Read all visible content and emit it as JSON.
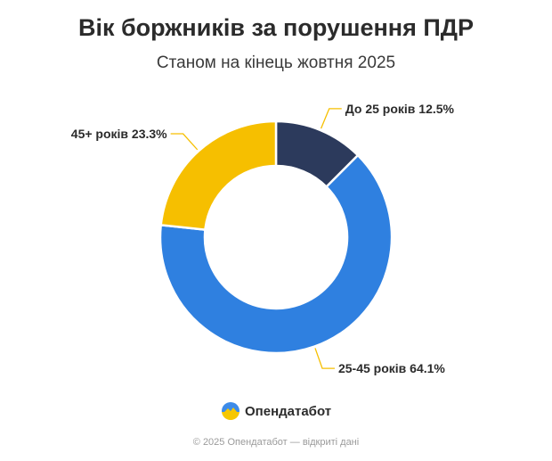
{
  "title": "Вік боржників за порушення ПДР",
  "subtitle": "Станом на кінець жовтня 2025",
  "brand": {
    "name": "Опендатабот",
    "icon": "opendatabot-logo-icon"
  },
  "footer": "© 2025 Опендатабот — відкриті дані",
  "colors": {
    "under25": "#2c3a5c",
    "age25_45": "#2f80e0",
    "age45plus": "#f6bf00",
    "leader": "#f6bf00"
  },
  "chart_data": {
    "type": "pie",
    "style": "donut",
    "title": "Вік боржників за порушення ПДР",
    "subtitle": "Станом на кінець жовтня 2025",
    "slices": [
      {
        "label": "До 25 років",
        "value": 12.5,
        "display": "До 25 років 12.5%",
        "color": "#2c3a5c"
      },
      {
        "label": "25-45 років",
        "value": 64.1,
        "display": "25-45 років 64.1%",
        "color": "#2f80e0"
      },
      {
        "label": "45+ років",
        "value": 23.3,
        "display": "45+ років 23.3%",
        "color": "#f6bf00"
      }
    ],
    "unit": "%",
    "legend": "none"
  }
}
